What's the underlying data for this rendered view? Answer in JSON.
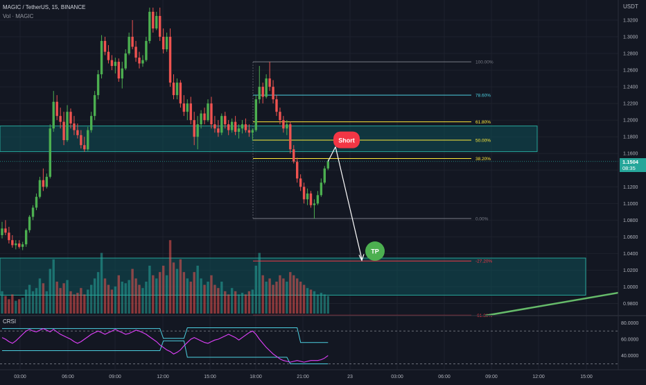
{
  "header": {
    "symbol_line": "MAGIC / TetherUS, 15, BINANCE",
    "volume_label": "Vol · MAGIC"
  },
  "price_axis": {
    "unit": "USDT",
    "labels": [
      "1.3200",
      "1.3000",
      "1.2800",
      "1.2600",
      "1.2400",
      "1.2200",
      "1.2000",
      "1.1800",
      "1.1600",
      "1.1400",
      "1.1200",
      "1.1000",
      "1.0800",
      "1.0600",
      "1.0400",
      "1.0200",
      "1.0000",
      "0.9800"
    ],
    "current_price": "1.1504",
    "countdown": "08:35"
  },
  "time_axis": {
    "labels": [
      "03:00",
      "06:00",
      "09:00",
      "12:00",
      "15:00",
      "18:00",
      "21:00",
      "23",
      "03:00",
      "06:00",
      "09:00",
      "12:00",
      "15:00"
    ]
  },
  "crsi": {
    "label": "CRSI",
    "axis_labels": [
      "80.0000",
      "60.0000",
      "40.0000"
    ],
    "upper_band": 70,
    "lower_band": 30,
    "mid": 50
  },
  "annotations": {
    "short_label": "Short",
    "tp_label": "TP"
  },
  "colors": {
    "background": "#131722",
    "up": "#26a69a",
    "up_candle": "#4caf50",
    "down": "#ef5350",
    "zone": "#0e4f55",
    "zone_border": "#26a69a",
    "short_badge": "#f23645",
    "tp_badge": "#4caf50",
    "trendline": "#66bb6a",
    "crsi_line": "#e040fb",
    "crsi_band": "#4dd0e1",
    "fib_grey": "#787b86",
    "fib_blue": "#4dd0e1",
    "fib_yellow": "#ffeb3b",
    "fib_red": "#f23645"
  },
  "chart_data": {
    "type": "candlestick",
    "title": "MAGIC / TetherUS, 15, BINANCE",
    "ylabel": "USDT",
    "ylim": [
      0.97,
      1.333
    ],
    "fibonacci": {
      "levels": [
        {
          "label": "100.00%",
          "price": 1.27
        },
        {
          "label": "78.60%",
          "price": 1.23
        },
        {
          "label": "61.80%",
          "price": 1.198
        },
        {
          "label": "50.00%",
          "price": 1.176
        },
        {
          "label": "38.20%",
          "price": 1.154
        },
        {
          "label": "0.00%",
          "price": 1.082
        },
        {
          "label": "-27.20%",
          "price": 1.031
        },
        {
          "label": "-61.80%",
          "price": 0.966
        }
      ]
    },
    "zones": [
      {
        "name": "resistance",
        "from": 1.1622,
        "to": 1.193
      },
      {
        "name": "target",
        "from": 0.99,
        "to": 1.0345
      }
    ],
    "trade": {
      "short_entry": 1.168,
      "take_profit": 1.03
    },
    "candles": [
      [
        1.062,
        1.078,
        1.058,
        1.07
      ],
      [
        1.07,
        1.08,
        1.062,
        1.065
      ],
      [
        1.065,
        1.072,
        1.052,
        1.056
      ],
      [
        1.056,
        1.062,
        1.047,
        1.05
      ],
      [
        1.05,
        1.056,
        1.045,
        1.052
      ],
      [
        1.052,
        1.056,
        1.046,
        1.048
      ],
      [
        1.048,
        1.054,
        1.044,
        1.051
      ],
      [
        1.051,
        1.07,
        1.048,
        1.068
      ],
      [
        1.068,
        1.086,
        1.065,
        1.084
      ],
      [
        1.084,
        1.098,
        1.08,
        1.095
      ],
      [
        1.095,
        1.112,
        1.092,
        1.108
      ],
      [
        1.108,
        1.132,
        1.106,
        1.128
      ],
      [
        1.128,
        1.142,
        1.115,
        1.12
      ],
      [
        1.12,
        1.136,
        1.118,
        1.132
      ],
      [
        1.132,
        1.195,
        1.13,
        1.19
      ],
      [
        1.19,
        1.235,
        1.186,
        1.222
      ],
      [
        1.222,
        1.23,
        1.2,
        1.205
      ],
      [
        1.205,
        1.215,
        1.19,
        1.198
      ],
      [
        1.198,
        1.21,
        1.17,
        1.176
      ],
      [
        1.176,
        1.218,
        1.174,
        1.21
      ],
      [
        1.21,
        1.214,
        1.19,
        1.196
      ],
      [
        1.196,
        1.205,
        1.182,
        1.188
      ],
      [
        1.188,
        1.196,
        1.178,
        1.182
      ],
      [
        1.182,
        1.188,
        1.166,
        1.17
      ],
      [
        1.17,
        1.18,
        1.162,
        1.165
      ],
      [
        1.165,
        1.192,
        1.163,
        1.188
      ],
      [
        1.188,
        1.21,
        1.185,
        1.205
      ],
      [
        1.205,
        1.235,
        1.2,
        1.23
      ],
      [
        1.23,
        1.26,
        1.225,
        1.255
      ],
      [
        1.255,
        1.302,
        1.25,
        1.295
      ],
      [
        1.295,
        1.3,
        1.278,
        1.282
      ],
      [
        1.282,
        1.29,
        1.268,
        1.272
      ],
      [
        1.272,
        1.278,
        1.26,
        1.265
      ],
      [
        1.265,
        1.275,
        1.256,
        1.27
      ],
      [
        1.27,
        1.274,
        1.246,
        1.25
      ],
      [
        1.25,
        1.27,
        1.238,
        1.262
      ],
      [
        1.262,
        1.285,
        1.26,
        1.28
      ],
      [
        1.28,
        1.305,
        1.278,
        1.3
      ],
      [
        1.3,
        1.32,
        1.285,
        1.288
      ],
      [
        1.288,
        1.295,
        1.27,
        1.275
      ],
      [
        1.275,
        1.282,
        1.262,
        1.268
      ],
      [
        1.268,
        1.278,
        1.264,
        1.272
      ],
      [
        1.272,
        1.3,
        1.27,
        1.295
      ],
      [
        1.295,
        1.335,
        1.292,
        1.33
      ],
      [
        1.33,
        1.335,
        1.305,
        1.31
      ],
      [
        1.31,
        1.33,
        1.308,
        1.325
      ],
      [
        1.325,
        1.335,
        1.295,
        1.3
      ],
      [
        1.3,
        1.31,
        1.28,
        1.285
      ],
      [
        1.285,
        1.305,
        1.282,
        1.3
      ],
      [
        1.3,
        1.31,
        1.24,
        1.245
      ],
      [
        1.245,
        1.255,
        1.225,
        1.23
      ],
      [
        1.23,
        1.25,
        1.225,
        1.245
      ],
      [
        1.245,
        1.248,
        1.215,
        1.22
      ],
      [
        1.22,
        1.23,
        1.205,
        1.21
      ],
      [
        1.21,
        1.225,
        1.2,
        1.22
      ],
      [
        1.22,
        1.228,
        1.195,
        1.2
      ],
      [
        1.2,
        1.21,
        1.17,
        1.18
      ],
      [
        1.18,
        1.205,
        1.165,
        1.195
      ],
      [
        1.195,
        1.212,
        1.19,
        1.208
      ],
      [
        1.208,
        1.215,
        1.195,
        1.2
      ],
      [
        1.2,
        1.225,
        1.198,
        1.22
      ],
      [
        1.22,
        1.228,
        1.19,
        1.195
      ],
      [
        1.195,
        1.205,
        1.185,
        1.19
      ],
      [
        1.19,
        1.2,
        1.18,
        1.185
      ],
      [
        1.185,
        1.208,
        1.182,
        1.205
      ],
      [
        1.205,
        1.21,
        1.19,
        1.195
      ],
      [
        1.195,
        1.2,
        1.182,
        1.188
      ],
      [
        1.188,
        1.202,
        1.185,
        1.198
      ],
      [
        1.198,
        1.205,
        1.182,
        1.186
      ],
      [
        1.186,
        1.195,
        1.178,
        1.19
      ],
      [
        1.19,
        1.2,
        1.184,
        1.195
      ],
      [
        1.195,
        1.202,
        1.185,
        1.188
      ],
      [
        1.188,
        1.195,
        1.18,
        1.185
      ],
      [
        1.185,
        1.19,
        1.175,
        1.188
      ],
      [
        1.188,
        1.23,
        1.186,
        1.225
      ],
      [
        1.225,
        1.265,
        1.22,
        1.24
      ],
      [
        1.24,
        1.245,
        1.22,
        1.228
      ],
      [
        1.228,
        1.255,
        1.226,
        1.25
      ],
      [
        1.25,
        1.27,
        1.235,
        1.24
      ],
      [
        1.24,
        1.248,
        1.22,
        1.225
      ],
      [
        1.225,
        1.23,
        1.205,
        1.21
      ],
      [
        1.21,
        1.215,
        1.195,
        1.2
      ],
      [
        1.2,
        1.205,
        1.185,
        1.19
      ],
      [
        1.19,
        1.2,
        1.182,
        1.195
      ],
      [
        1.195,
        1.198,
        1.16,
        1.165
      ],
      [
        1.165,
        1.17,
        1.148,
        1.15
      ],
      [
        1.15,
        1.155,
        1.125,
        1.13
      ],
      [
        1.13,
        1.135,
        1.115,
        1.12
      ],
      [
        1.12,
        1.125,
        1.1,
        1.105
      ],
      [
        1.105,
        1.118,
        1.098,
        1.112
      ],
      [
        1.112,
        1.115,
        1.095,
        1.098
      ],
      [
        1.098,
        1.105,
        1.082,
        1.1
      ],
      [
        1.1,
        1.115,
        1.098,
        1.11
      ],
      [
        1.11,
        1.13,
        1.108,
        1.125
      ],
      [
        1.125,
        1.145,
        1.123,
        1.142
      ],
      [
        1.142,
        1.153,
        1.14,
        1.1504
      ]
    ],
    "volume": [
      14,
      11,
      9,
      12,
      8,
      9,
      10,
      15,
      18,
      14,
      16,
      22,
      19,
      14,
      28,
      34,
      20,
      16,
      19,
      21,
      14,
      12,
      13,
      16,
      12,
      15,
      18,
      22,
      26,
      38,
      22,
      18,
      15,
      17,
      24,
      20,
      19,
      21,
      28,
      22,
      18,
      16,
      20,
      30,
      24,
      22,
      26,
      30,
      24,
      46,
      32,
      28,
      34,
      26,
      22,
      20,
      26,
      30,
      22,
      18,
      20,
      24,
      18,
      16,
      20,
      14,
      12,
      16,
      14,
      12,
      13,
      12,
      14,
      15,
      30,
      38,
      24,
      20,
      22,
      18,
      20,
      24,
      22,
      20,
      26,
      24,
      22,
      20,
      18,
      16,
      15,
      14,
      12,
      13,
      12,
      11
    ]
  }
}
